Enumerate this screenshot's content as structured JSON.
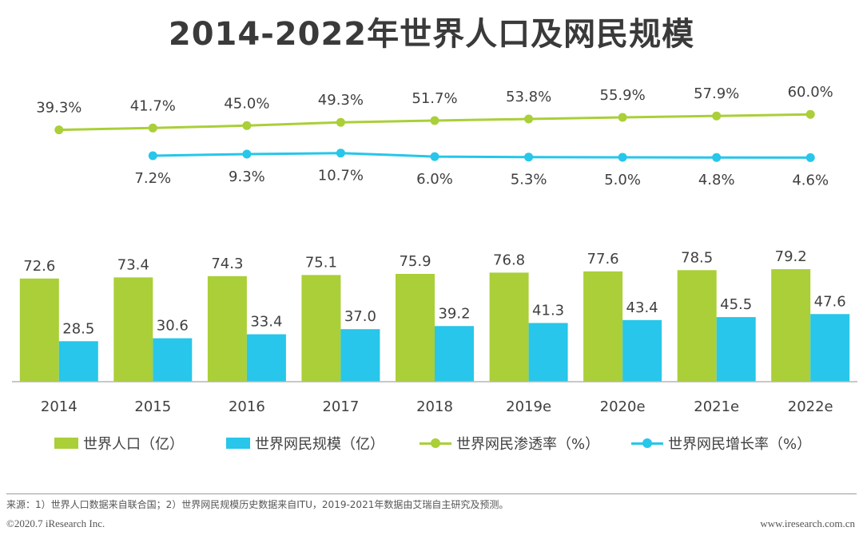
{
  "chart_data": {
    "type": "bar",
    "title": "2014-2022年世界人口及网民规模",
    "categories": [
      "2014",
      "2015",
      "2016",
      "2017",
      "2018",
      "2019e",
      "2020e",
      "2021e",
      "2022e"
    ],
    "series": [
      {
        "name": "世界人口（亿）",
        "kind": "bar",
        "color": "#aacf38",
        "values": [
          72.6,
          73.4,
          74.3,
          75.1,
          75.9,
          76.8,
          77.6,
          78.5,
          79.2
        ],
        "labels": [
          "72.6",
          "73.4",
          "74.3",
          "75.1",
          "75.9",
          "76.8",
          "77.6",
          "78.5",
          "79.2"
        ]
      },
      {
        "name": "世界网民规模（亿）",
        "kind": "bar",
        "color": "#27c6ea",
        "values": [
          28.5,
          30.6,
          33.4,
          37.0,
          39.2,
          41.3,
          43.4,
          45.5,
          47.6
        ],
        "labels": [
          "28.5",
          "30.6",
          "33.4",
          "37.0",
          "39.2",
          "41.3",
          "43.4",
          "45.5",
          "47.6"
        ]
      },
      {
        "name": "世界网民渗透率（%）",
        "kind": "line",
        "color": "#aacf38",
        "values": [
          39.3,
          41.7,
          45.0,
          49.3,
          51.7,
          53.8,
          55.9,
          57.9,
          60.0
        ],
        "labels": [
          "39.3%",
          "41.7%",
          "45.0%",
          "49.3%",
          "51.7%",
          "53.8%",
          "55.9%",
          "57.9%",
          "60.0%"
        ]
      },
      {
        "name": "世界网民增长率（%）",
        "kind": "line",
        "color": "#27c6ea",
        "values": [
          null,
          7.2,
          9.3,
          10.7,
          6.0,
          5.3,
          5.0,
          4.8,
          4.6
        ],
        "labels": [
          null,
          "7.2%",
          "9.3%",
          "10.7%",
          "6.0%",
          "5.3%",
          "5.0%",
          "4.8%",
          "4.6%"
        ]
      }
    ],
    "legend_position": "bottom"
  },
  "footer": {
    "source": "来源：1）世界人口数据来自联合国；2）世界网民规模历史数据来自ITU，2019-2021年数据由艾瑞自主研究及预测。",
    "copyright": "©2020.7 iResearch Inc.",
    "website": "www.iresearch.com.cn"
  }
}
